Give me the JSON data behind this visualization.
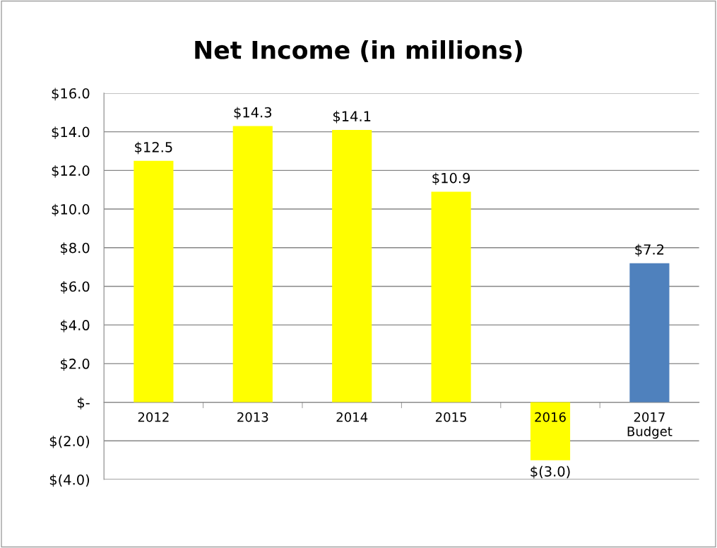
{
  "chart_data": {
    "type": "bar",
    "title": "Net Income (in millions)",
    "categories": [
      "2012",
      "2013",
      "2014",
      "2015",
      "2016",
      "2017\nBudget"
    ],
    "values": [
      12.5,
      14.3,
      14.1,
      10.9,
      -3.0,
      7.2
    ],
    "colors": [
      "#ffff00",
      "#ffff00",
      "#ffff00",
      "#ffff00",
      "#ffff00",
      "#4f81bd"
    ],
    "value_labels": [
      "$12.5",
      "$14.3",
      "$14.1",
      "$10.9",
      "$(3.0)",
      "$7.2"
    ],
    "ylim": [
      -4,
      16
    ],
    "yticks": [
      {
        "value": -4,
        "label": "$(4.0)"
      },
      {
        "value": -2,
        "label": "$(2.0)"
      },
      {
        "value": 0,
        "label": "$-"
      },
      {
        "value": 2,
        "label": "$2.0"
      },
      {
        "value": 4,
        "label": "$4.0"
      },
      {
        "value": 6,
        "label": "$6.0"
      },
      {
        "value": 8,
        "label": "$8.0"
      },
      {
        "value": 10,
        "label": "$10.0"
      },
      {
        "value": 12,
        "label": "$12.0"
      },
      {
        "value": 14,
        "label": "$14.0"
      },
      {
        "value": 16,
        "label": "$16.0"
      }
    ],
    "grid": "y",
    "legend": false
  }
}
